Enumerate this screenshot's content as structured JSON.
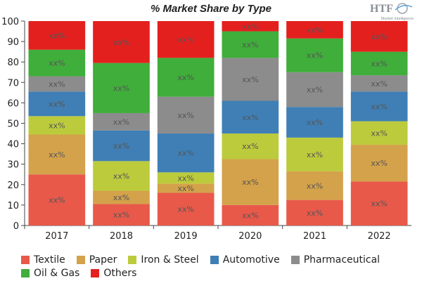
{
  "header": {
    "title": "% Market Share by Type",
    "logo_text": "HTF",
    "logo_subtext": "Market Intelligence"
  },
  "chart_data": {
    "type": "bar",
    "stacked": true,
    "categories": [
      "2017",
      "2018",
      "2019",
      "2020",
      "2021",
      "2022"
    ],
    "ylim": [
      0,
      100
    ],
    "yticks": [
      0,
      10,
      20,
      30,
      40,
      50,
      60,
      70,
      80,
      90,
      100
    ],
    "grid": false,
    "legend_position": "bottom",
    "segment_label": "xx%",
    "series": [
      {
        "name": "Textile",
        "color": "#e8594a",
        "values": [
          25,
          10.5,
          16,
          10,
          12.5,
          21.5
        ]
      },
      {
        "name": "Paper",
        "color": "#d4a24a",
        "values": [
          19.5,
          6.5,
          4.5,
          22.5,
          14,
          18
        ]
      },
      {
        "name": "Iron & Steel",
        "color": "#bccb3c",
        "values": [
          9,
          14.5,
          5.5,
          12.5,
          16.5,
          11.5
        ]
      },
      {
        "name": "Automotive",
        "color": "#3f7fb5",
        "values": [
          12,
          15,
          19,
          16,
          15,
          14.5
        ]
      },
      {
        "name": "Pharmaceutical",
        "color": "#8c8c8c",
        "values": [
          7.5,
          8.5,
          18,
          21,
          17,
          8
        ]
      },
      {
        "name": "Oil & Gas",
        "color": "#3fae3a",
        "values": [
          13,
          24.5,
          19,
          13,
          16.5,
          11.5
        ]
      },
      {
        "name": "Others",
        "color": "#e4201f",
        "values": [
          14,
          20.5,
          18,
          5,
          8.5,
          15
        ]
      }
    ]
  }
}
